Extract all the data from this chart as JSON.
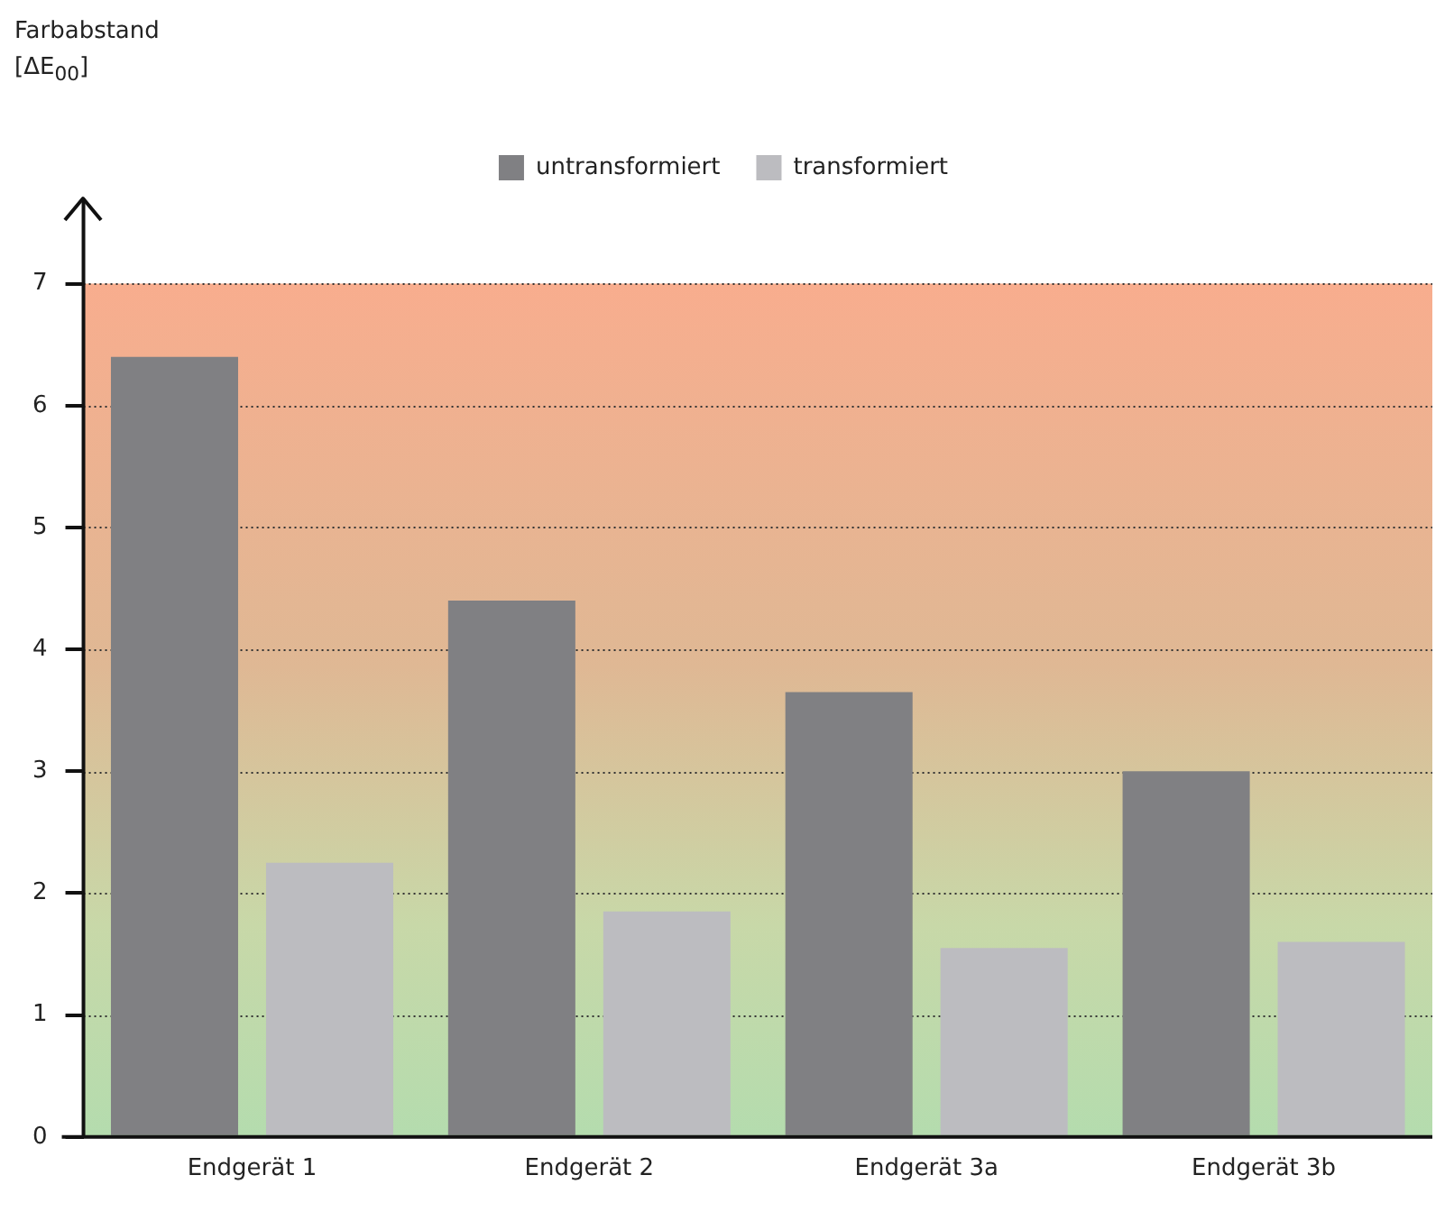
{
  "chart_data": {
    "type": "bar",
    "ylabel": "Farbabstand [ΔE$_{00}$]",
    "categories": [
      "Endgerät 1",
      "Endgerät 2",
      "Endgerät 3a",
      "Endgerät 3b"
    ],
    "series": [
      {
        "name": "untransformiert",
        "color": "#808083",
        "values": [
          6.4,
          4.4,
          3.65,
          3.0
        ]
      },
      {
        "name": "transformiert",
        "color": "#bcbcc0",
        "values": [
          2.25,
          1.85,
          1.55,
          1.6
        ]
      }
    ],
    "ylim": [
      0,
      7.7
    ],
    "yticks": [
      0,
      1,
      2,
      3,
      4,
      5,
      6,
      7
    ],
    "grid": "y",
    "legend": "top",
    "bands": [
      {
        "axis": "y",
        "from": 0,
        "to": 7
      }
    ]
  }
}
